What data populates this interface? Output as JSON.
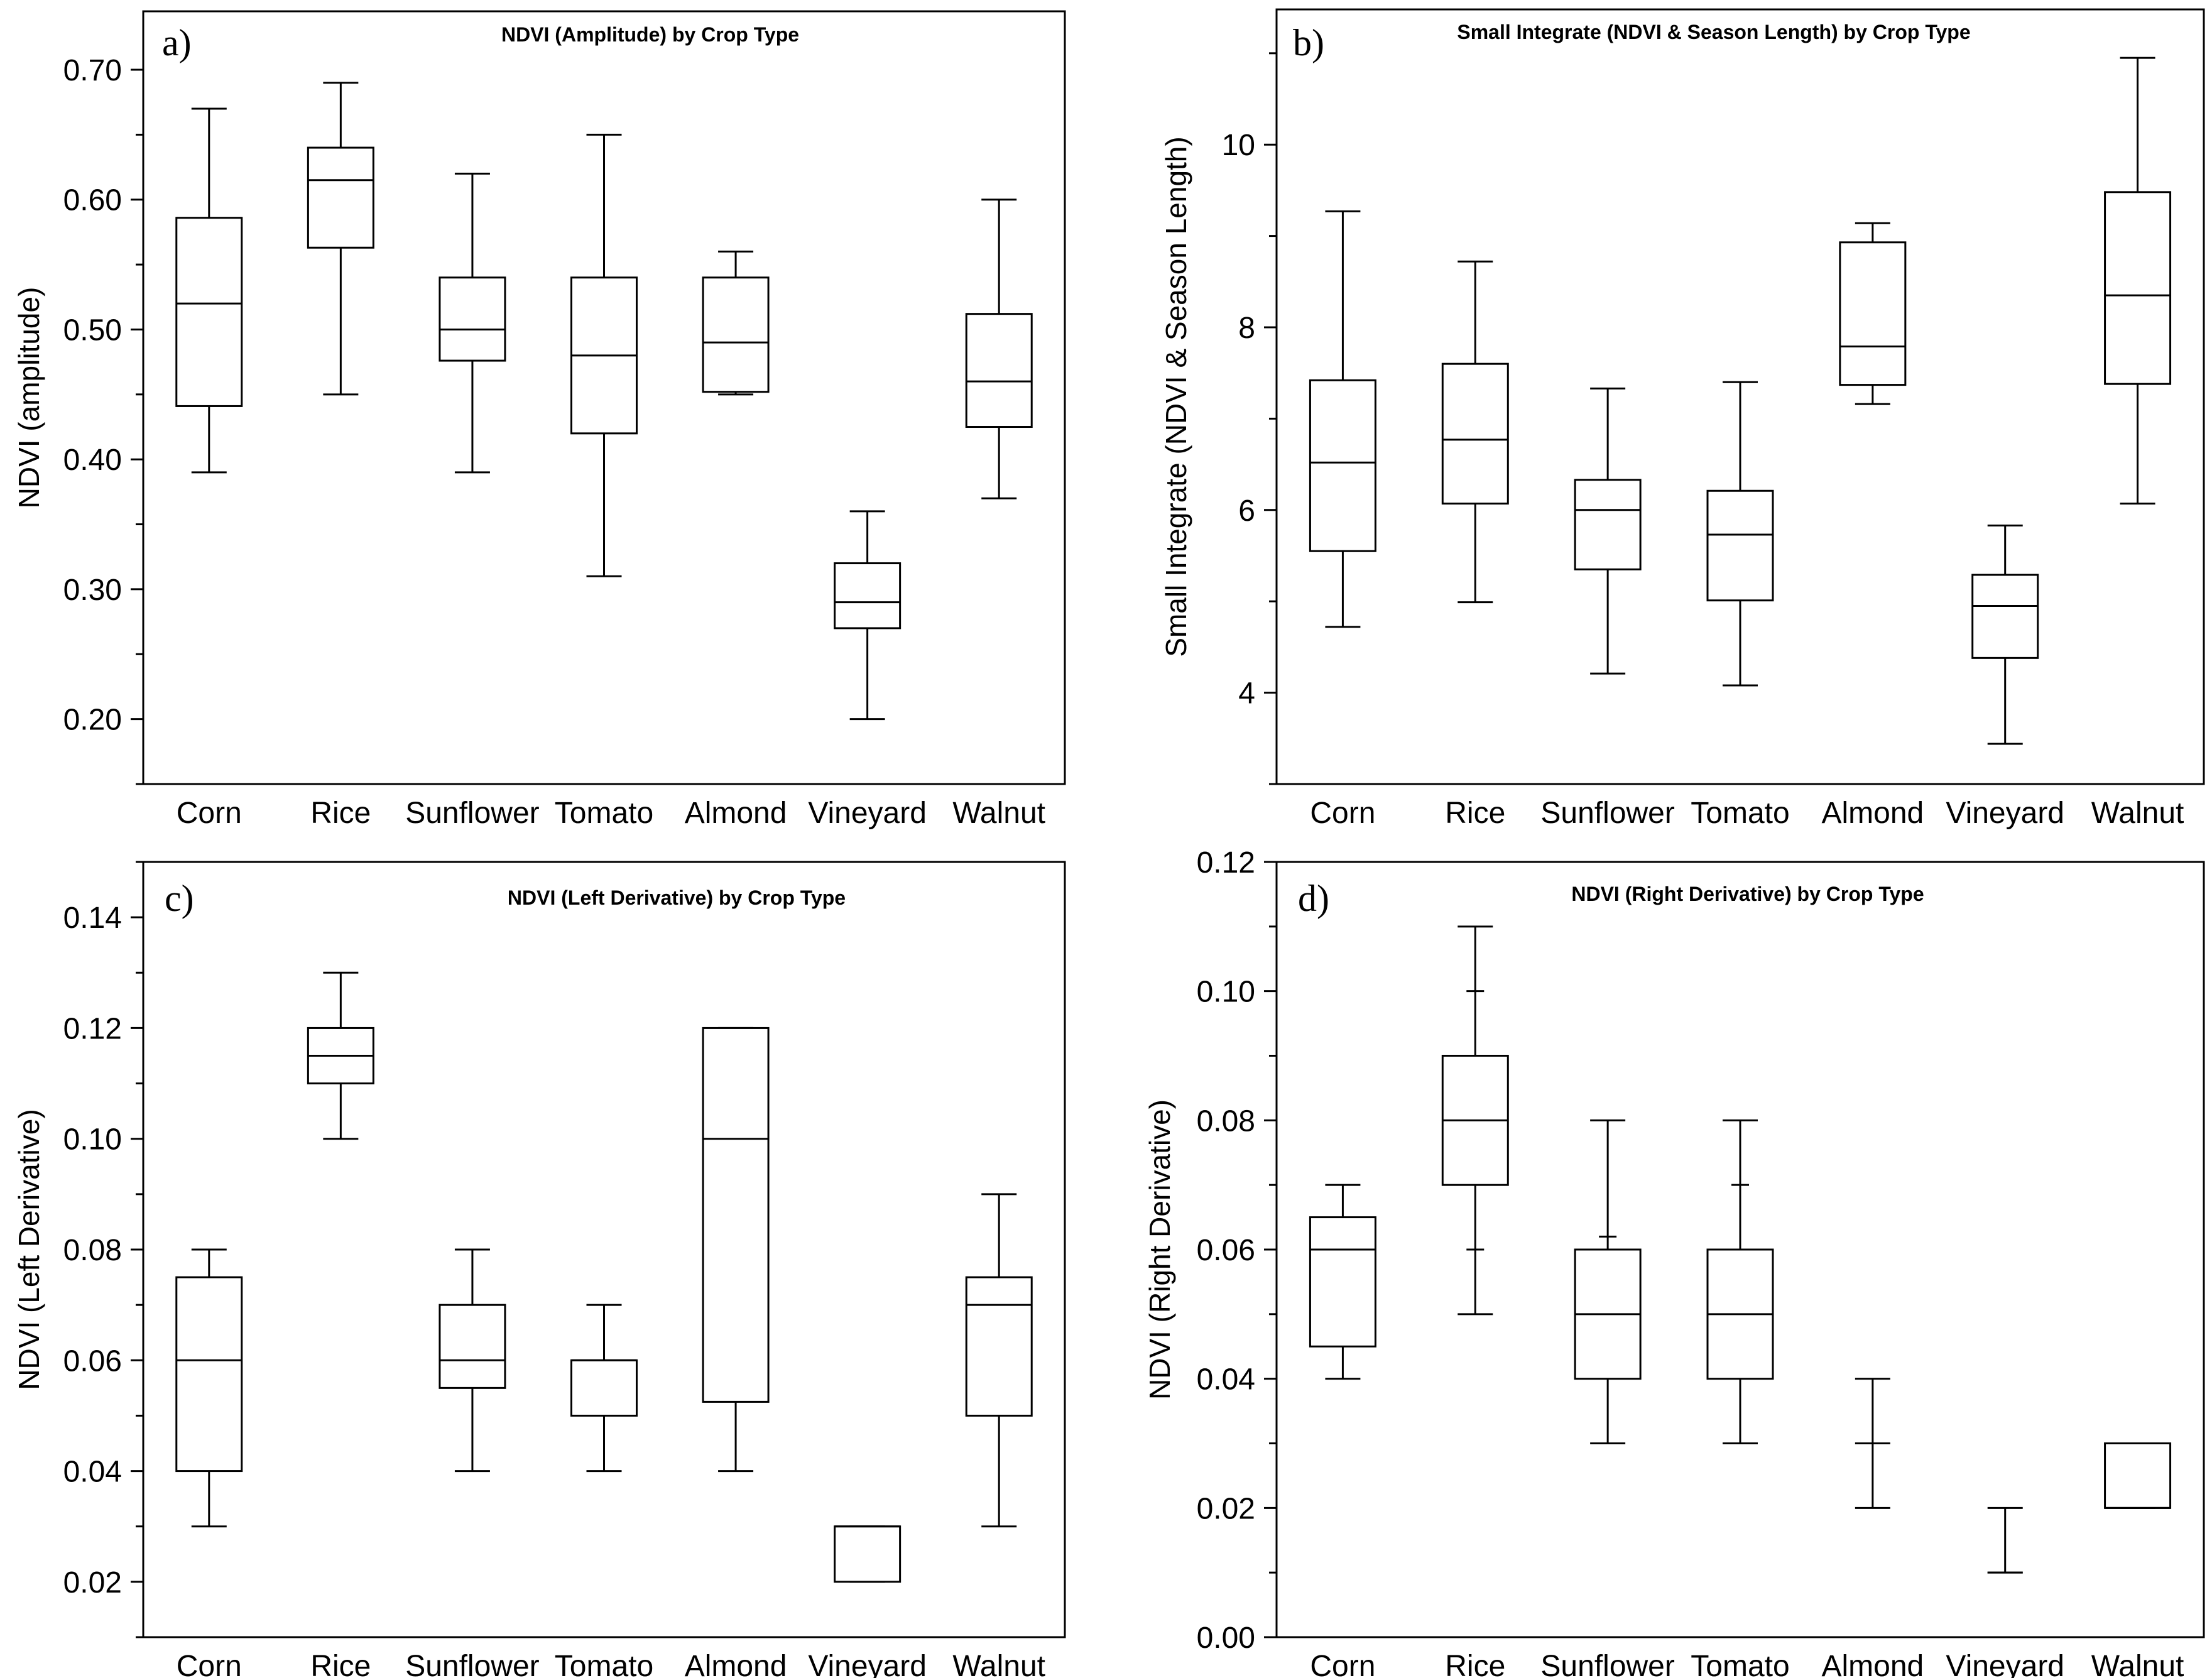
{
  "chart_data": [
    {
      "panel": "a)",
      "type": "box",
      "title": "NDVI (Amplitude) by Crop Type",
      "xlabel": "",
      "ylabel": "NDVI (amplitude)",
      "categories": [
        "Corn",
        "Rice",
        "Sunflower",
        "Tomato",
        "Almond",
        "Vineyard",
        "Walnut"
      ],
      "ylim": [
        0.15,
        0.745
      ],
      "yticks": [
        0.2,
        0.3,
        0.4,
        0.5,
        0.6,
        0.7
      ],
      "ytick_labels": [
        "0.20",
        "0.30",
        "0.40",
        "0.50",
        "0.60",
        "0.70"
      ],
      "boxes": [
        {
          "min": 0.39,
          "q1": 0.441,
          "median": 0.52,
          "q3": 0.586,
          "max": 0.67
        },
        {
          "min": 0.45,
          "q1": 0.563,
          "median": 0.615,
          "q3": 0.64,
          "max": 0.69
        },
        {
          "min": 0.39,
          "q1": 0.476,
          "median": 0.5,
          "q3": 0.54,
          "max": 0.62
        },
        {
          "min": 0.31,
          "q1": 0.42,
          "median": 0.48,
          "q3": 0.54,
          "max": 0.65
        },
        {
          "min": 0.45,
          "q1": 0.452,
          "median": 0.49,
          "q3": 0.54,
          "max": 0.56
        },
        {
          "min": 0.2,
          "q1": 0.27,
          "median": 0.29,
          "q3": 0.32,
          "max": 0.36
        },
        {
          "min": 0.37,
          "q1": 0.425,
          "median": 0.46,
          "q3": 0.512,
          "max": 0.6
        }
      ]
    },
    {
      "panel": "b)",
      "type": "box",
      "title": "Small Integrate (NDVI & Season Length) by Crop Type",
      "xlabel": "",
      "ylabel": "Small Integrate (NDVI & Season Length)",
      "categories": [
        "Corn",
        "Rice",
        "Sunflower",
        "Tomato",
        "Almond",
        "Vineyard",
        "Walnut"
      ],
      "ylim": [
        3.0,
        11.48
      ],
      "yticks": [
        4,
        6,
        8,
        10
      ],
      "ytick_labels": [
        "4",
        "6",
        "8",
        "10"
      ],
      "boxes": [
        {
          "min": 4.72,
          "q1": 5.55,
          "median": 6.52,
          "q3": 7.42,
          "max": 9.27
        },
        {
          "min": 4.99,
          "q1": 6.07,
          "median": 6.77,
          "q3": 7.6,
          "max": 8.72
        },
        {
          "min": 4.21,
          "q1": 5.35,
          "median": 6.0,
          "q3": 6.33,
          "max": 7.33
        },
        {
          "min": 4.08,
          "q1": 5.01,
          "median": 5.73,
          "q3": 6.21,
          "max": 7.4
        },
        {
          "min": 7.16,
          "q1": 7.37,
          "median": 7.79,
          "q3": 8.93,
          "max": 9.14
        },
        {
          "min": 3.44,
          "q1": 4.38,
          "median": 4.95,
          "q3": 5.29,
          "max": 5.83
        },
        {
          "min": 6.07,
          "q1": 7.38,
          "median": 8.35,
          "q3": 9.48,
          "max": 10.95
        }
      ]
    },
    {
      "panel": "c)",
      "type": "box",
      "title": "NDVI (Left Derivative) by Crop Type",
      "xlabel": "",
      "ylabel": "NDVI (Left Derivative)",
      "categories": [
        "Corn",
        "Rice",
        "Sunflower",
        "Tomato",
        "Almond",
        "Vineyard",
        "Walnut"
      ],
      "ylim": [
        0.01,
        0.15
      ],
      "yticks": [
        0.02,
        0.04,
        0.06,
        0.08,
        0.1,
        0.12,
        0.14
      ],
      "ytick_labels": [
        "0.02",
        "0.04",
        "0.06",
        "0.08",
        "0.10",
        "0.12",
        "0.14"
      ],
      "boxes": [
        {
          "min": 0.03,
          "q1": 0.04,
          "median": 0.06,
          "q3": 0.075,
          "max": 0.08
        },
        {
          "min": 0.1,
          "q1": 0.11,
          "median": 0.115,
          "q3": 0.12,
          "max": 0.13
        },
        {
          "min": 0.04,
          "q1": 0.055,
          "median": 0.06,
          "q3": 0.07,
          "max": 0.08
        },
        {
          "min": 0.04,
          "q1": 0.05,
          "median": 0.06,
          "q3": 0.06,
          "max": 0.07
        },
        {
          "min": 0.04,
          "q1": 0.0525,
          "median": 0.1,
          "q3": 0.12,
          "max": 0.12
        },
        {
          "min": 0.02,
          "q1": 0.02,
          "median": 0.03,
          "q3": 0.03,
          "max": 0.03
        },
        {
          "min": 0.03,
          "q1": 0.05,
          "median": 0.07,
          "q3": 0.075,
          "max": 0.09
        }
      ]
    },
    {
      "panel": "d)",
      "type": "box",
      "title": "NDVI (Right Derivative) by Crop Type",
      "xlabel": "",
      "ylabel": "NDVI (Right Derivative)",
      "categories": [
        "Corn",
        "Rice",
        "Sunflower",
        "Tomato",
        "Almond",
        "Vineyard",
        "Walnut"
      ],
      "ylim": [
        0.0,
        0.12
      ],
      "yticks": [
        0.0,
        0.02,
        0.04,
        0.06,
        0.08,
        0.1,
        0.12
      ],
      "ytick_labels": [
        "0.00",
        "0.02",
        "0.04",
        "0.06",
        "0.08",
        "0.10",
        "0.12"
      ],
      "boxes": [
        {
          "min": 0.04,
          "q1": 0.045,
          "median": 0.06,
          "q3": 0.065,
          "max": 0.07
        },
        {
          "min": 0.05,
          "q1": 0.07,
          "median": 0.08,
          "q3": 0.09,
          "max": 0.11,
          "extra_ticks": [
            0.06,
            0.1
          ]
        },
        {
          "min": 0.03,
          "q1": 0.04,
          "median": 0.05,
          "q3": 0.06,
          "max": 0.08,
          "extra_ticks": [
            0.062
          ]
        },
        {
          "min": 0.03,
          "q1": 0.04,
          "median": 0.05,
          "q3": 0.06,
          "max": 0.08,
          "extra_ticks": [
            0.07
          ]
        },
        {
          "min": 0.02,
          "q1": 0.03,
          "median": 0.03,
          "q3": 0.03,
          "max": 0.04
        },
        {
          "min": 0.01,
          "q1": 0.01,
          "median": 0.01,
          "q3": 0.01,
          "max": 0.02
        },
        {
          "min": 0.02,
          "q1": 0.02,
          "median": 0.02,
          "q3": 0.03,
          "max": 0.03
        }
      ]
    }
  ]
}
